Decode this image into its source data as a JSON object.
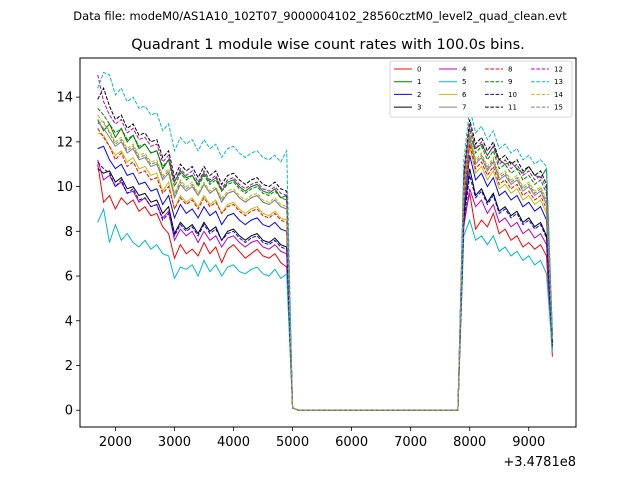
{
  "header_text": "Data file: modeM0/AS1A10_102T07_9000004102_28560cztM0_level2_quad_clean.evt",
  "chart_data": {
    "type": "line",
    "title": "Quadrant 1 module wise count rates with 100.0s bins.",
    "xlabel": "",
    "ylabel": "",
    "x_offset_label": "+3.4781e8",
    "xlim": [
      1400,
      9800
    ],
    "ylim": [
      -0.75,
      15.75
    ],
    "xticks": [
      2000,
      3000,
      4000,
      5000,
      6000,
      7000,
      8000,
      9000
    ],
    "yticks": [
      0,
      2,
      4,
      6,
      8,
      10,
      12,
      14
    ],
    "legend_position": "upper right",
    "gaps": [
      [
        5000,
        7900
      ]
    ],
    "segment1_x": [
      1700,
      1800,
      1900,
      2000,
      2100,
      2200,
      2300,
      2400,
      2500,
      2600,
      2700,
      2800,
      2900,
      3000,
      3100,
      3200,
      3300,
      3400,
      3500,
      3600,
      3700,
      3800,
      3900,
      4000,
      4100,
      4200,
      4300,
      4400,
      4500,
      4600,
      4700,
      4800,
      4900,
      5000
    ],
    "segment2_x": [
      7900,
      8000,
      8100,
      8200,
      8300,
      8400,
      8500,
      8600,
      8700,
      8800,
      8900,
      9000,
      9100,
      9200,
      9300,
      9400
    ],
    "series": [
      {
        "name": "0",
        "color": "#ff0000",
        "dash": "solid",
        "s1": [
          11.0,
          9.3,
          9.6,
          9.0,
          9.5,
          9.2,
          9.4,
          8.9,
          9.1,
          8.7,
          8.8,
          8.2,
          7.9,
          6.8,
          7.4,
          7.0,
          7.2,
          6.9,
          7.5,
          7.0,
          7.3,
          6.6,
          7.2,
          7.4,
          7.1,
          6.8,
          7.0,
          7.2,
          6.9,
          6.8,
          7.0,
          6.6,
          6.4,
          0.1
        ],
        "s2": [
          8.5,
          9.7,
          8.1,
          8.5,
          8.2,
          8.8,
          7.9,
          8.1,
          7.6,
          7.8,
          7.3,
          7.5,
          7.2,
          7.4,
          6.9,
          2.4
        ]
      },
      {
        "name": "1",
        "color": "#008000",
        "dash": "solid",
        "s1": [
          13.0,
          12.5,
          12.8,
          12.2,
          12.6,
          12.0,
          12.3,
          11.7,
          11.9,
          11.5,
          11.6,
          10.8,
          11.2,
          10.2,
          10.7,
          10.4,
          10.5,
          10.1,
          10.6,
          10.2,
          10.4,
          9.8,
          10.2,
          10.3,
          10.0,
          9.8,
          10.0,
          10.1,
          9.8,
          9.7,
          9.9,
          9.5,
          9.6,
          0.1
        ],
        "s2": [
          10.0,
          12.2,
          11.7,
          11.9,
          11.4,
          11.8,
          11.2,
          11.0,
          11.1,
          10.8,
          10.6,
          10.9,
          10.5,
          10.4,
          10.8,
          3.2
        ]
      },
      {
        "name": "2",
        "color": "#0000ff",
        "dash": "solid",
        "s1": [
          11.7,
          11.8,
          11.2,
          10.8,
          11.0,
          10.5,
          10.6,
          10.1,
          10.2,
          9.8,
          9.9,
          9.2,
          9.6,
          8.6,
          9.2,
          8.8,
          9.0,
          8.6,
          9.1,
          8.7,
          8.9,
          8.3,
          8.7,
          8.8,
          8.5,
          8.3,
          8.5,
          8.6,
          8.3,
          8.2,
          8.4,
          8.1,
          8.0,
          0.1
        ],
        "s2": [
          9.0,
          11.4,
          10.3,
          10.6,
          10.0,
          10.4,
          9.6,
          9.8,
          9.4,
          9.6,
          9.1,
          9.3,
          8.9,
          9.1,
          8.5,
          3.0
        ]
      },
      {
        "name": "3",
        "color": "#000000",
        "dash": "solid",
        "s1": [
          10.8,
          10.6,
          10.7,
          10.2,
          10.4,
          9.9,
          10.0,
          9.6,
          9.7,
          9.3,
          9.4,
          8.8,
          9.1,
          7.9,
          8.4,
          8.1,
          8.3,
          7.9,
          8.4,
          8.0,
          8.2,
          7.6,
          8.0,
          8.1,
          7.8,
          7.6,
          7.8,
          7.9,
          7.6,
          7.5,
          7.7,
          7.4,
          7.3,
          0.1
        ],
        "s2": [
          8.7,
          10.8,
          9.6,
          9.9,
          9.3,
          9.7,
          8.9,
          9.1,
          8.7,
          8.9,
          8.4,
          8.6,
          8.2,
          8.4,
          7.8,
          2.8
        ]
      },
      {
        "name": "4",
        "color": "#bf00bf",
        "dash": "solid",
        "s1": [
          11.2,
          10.3,
          10.5,
          10.0,
          10.2,
          9.7,
          9.8,
          9.3,
          9.5,
          9.1,
          9.2,
          8.6,
          8.9,
          7.6,
          8.1,
          7.8,
          8.0,
          7.5,
          8.0,
          7.6,
          7.8,
          7.3,
          7.7,
          7.8,
          7.5,
          7.3,
          7.5,
          7.6,
          7.3,
          7.2,
          7.4,
          7.1,
          7.0,
          0.1
        ],
        "s2": [
          8.2,
          9.9,
          9.1,
          9.4,
          8.8,
          9.2,
          8.4,
          8.6,
          8.2,
          8.4,
          7.9,
          8.1,
          7.7,
          7.9,
          7.4,
          2.7
        ]
      },
      {
        "name": "5",
        "color": "#00bfbf",
        "dash": "solid",
        "s1": [
          8.4,
          9.0,
          7.5,
          8.3,
          7.6,
          7.9,
          7.5,
          7.3,
          7.6,
          7.2,
          7.4,
          7.0,
          6.9,
          5.9,
          6.4,
          6.3,
          6.5,
          6.0,
          6.7,
          6.2,
          6.5,
          6.0,
          6.4,
          6.5,
          6.2,
          6.1,
          6.3,
          6.4,
          6.1,
          6.0,
          6.3,
          5.9,
          6.1,
          0.1
        ],
        "s2": [
          7.8,
          8.5,
          7.6,
          7.8,
          7.4,
          7.8,
          7.1,
          7.3,
          6.9,
          7.1,
          6.7,
          6.9,
          6.5,
          6.7,
          6.1,
          2.6
        ]
      },
      {
        "name": "6",
        "color": "#bfbf00",
        "dash": "solid",
        "s1": [
          12.4,
          12.3,
          11.8,
          11.4,
          11.6,
          11.1,
          11.3,
          10.8,
          10.9,
          10.5,
          10.6,
          9.8,
          10.2,
          9.0,
          9.6,
          9.3,
          9.5,
          9.1,
          9.6,
          9.2,
          9.4,
          8.8,
          9.2,
          9.3,
          9.0,
          8.8,
          9.0,
          9.1,
          8.8,
          8.7,
          8.9,
          8.6,
          8.5,
          0.1
        ],
        "s2": [
          9.3,
          11.8,
          10.6,
          10.9,
          10.3,
          10.7,
          9.9,
          10.1,
          9.7,
          9.9,
          9.4,
          9.6,
          9.2,
          9.4,
          8.8,
          3.1
        ]
      },
      {
        "name": "7",
        "color": "#808080",
        "dash": "solid",
        "s1": [
          12.9,
          12.6,
          12.2,
          11.8,
          12.0,
          11.5,
          11.7,
          11.2,
          11.3,
          10.9,
          11.0,
          10.3,
          10.6,
          9.5,
          10.1,
          9.8,
          10.0,
          9.6,
          10.1,
          9.7,
          9.9,
          9.3,
          9.7,
          9.8,
          9.5,
          9.3,
          9.5,
          9.6,
          9.3,
          9.2,
          9.4,
          9.1,
          9.0,
          0.1
        ],
        "s2": [
          9.6,
          12.1,
          11.0,
          11.3,
          10.7,
          11.1,
          10.3,
          10.5,
          10.1,
          10.3,
          9.8,
          10.0,
          9.6,
          9.8,
          9.2,
          3.2
        ]
      },
      {
        "name": "8",
        "color": "#ff0000",
        "dash": "dashed",
        "s1": [
          12.6,
          12.2,
          11.8,
          11.2,
          11.5,
          10.9,
          11.1,
          10.6,
          10.7,
          10.3,
          10.4,
          9.7,
          10.0,
          9.0,
          9.5,
          9.2,
          9.4,
          9.0,
          9.5,
          9.1,
          9.3,
          8.8,
          9.1,
          9.2,
          8.9,
          8.7,
          8.9,
          9.0,
          8.7,
          8.6,
          8.8,
          8.5,
          8.4,
          0.1
        ],
        "s2": [
          9.4,
          11.9,
          10.8,
          11.1,
          10.5,
          10.9,
          10.1,
          10.3,
          9.9,
          10.1,
          9.6,
          9.8,
          9.4,
          9.6,
          9.0,
          3.1
        ]
      },
      {
        "name": "9",
        "color": "#008000",
        "dash": "dashed",
        "s1": [
          13.5,
          13.2,
          12.8,
          12.4,
          12.6,
          12.1,
          12.3,
          11.8,
          11.9,
          11.5,
          11.6,
          10.9,
          11.2,
          10.0,
          10.6,
          10.3,
          10.5,
          10.0,
          10.5,
          10.1,
          10.3,
          9.8,
          10.1,
          10.2,
          9.9,
          9.7,
          9.9,
          10.0,
          9.7,
          9.6,
          9.8,
          9.5,
          9.4,
          0.1
        ],
        "s2": [
          10.3,
          12.6,
          11.5,
          11.8,
          11.2,
          11.6,
          10.8,
          11.0,
          10.6,
          10.8,
          10.3,
          10.5,
          10.1,
          10.3,
          9.7,
          3.3
        ]
      },
      {
        "name": "10",
        "color": "#0000ff",
        "dash": "dashed",
        "s1": [
          11.1,
          10.8,
          10.6,
          10.0,
          10.3,
          9.7,
          9.9,
          9.4,
          9.5,
          9.1,
          9.2,
          8.5,
          8.8,
          7.8,
          8.3,
          8.0,
          8.2,
          7.8,
          8.3,
          7.9,
          8.1,
          7.6,
          7.9,
          8.0,
          7.7,
          7.5,
          7.7,
          7.8,
          7.5,
          7.4,
          7.6,
          7.3,
          7.2,
          0.1
        ],
        "s2": [
          8.4,
          10.5,
          9.5,
          9.8,
          9.2,
          9.6,
          8.8,
          9.0,
          8.6,
          8.8,
          8.3,
          8.5,
          8.1,
          8.3,
          7.7,
          2.9
        ]
      },
      {
        "name": "11",
        "color": "#000000",
        "dash": "dashed",
        "s1": [
          13.9,
          14.4,
          13.6,
          13.0,
          13.2,
          12.6,
          12.8,
          12.3,
          12.4,
          12.0,
          12.1,
          11.3,
          11.6,
          10.4,
          11.0,
          10.7,
          10.9,
          10.4,
          10.9,
          10.5,
          10.7,
          10.1,
          10.5,
          10.6,
          10.3,
          10.1,
          10.3,
          10.4,
          10.1,
          10.0,
          10.2,
          9.9,
          9.8,
          0.1
        ],
        "s2": [
          10.6,
          13.0,
          11.9,
          12.2,
          11.6,
          12.0,
          11.2,
          11.4,
          11.0,
          11.2,
          10.7,
          10.9,
          10.5,
          10.7,
          10.1,
          3.4
        ]
      },
      {
        "name": "12",
        "color": "#bf00bf",
        "dash": "dashed",
        "s1": [
          15.0,
          13.8,
          13.2,
          12.8,
          13.0,
          12.4,
          12.6,
          12.1,
          12.2,
          11.8,
          11.9,
          11.1,
          11.4,
          10.2,
          10.8,
          10.5,
          10.7,
          10.2,
          10.7,
          10.3,
          10.5,
          9.9,
          10.3,
          10.4,
          10.1,
          9.9,
          10.1,
          10.2,
          9.9,
          9.8,
          10.0,
          9.7,
          9.6,
          0.1
        ],
        "s2": [
          10.4,
          12.8,
          11.7,
          12.0,
          11.4,
          11.8,
          11.0,
          11.2,
          10.8,
          11.0,
          10.5,
          10.7,
          10.3,
          10.5,
          9.9,
          3.3
        ]
      },
      {
        "name": "13",
        "color": "#00bfbf",
        "dash": "dashed",
        "s1": [
          14.4,
          15.1,
          15.0,
          14.1,
          14.4,
          13.8,
          14.0,
          13.5,
          13.6,
          13.2,
          13.3,
          12.5,
          12.8,
          11.6,
          12.2,
          11.9,
          12.1,
          11.6,
          12.1,
          11.7,
          11.9,
          11.3,
          11.7,
          11.8,
          11.5,
          11.3,
          11.5,
          11.6,
          11.3,
          11.2,
          11.4,
          11.1,
          11.6,
          0.1
        ],
        "s2": [
          11.2,
          13.5,
          12.4,
          12.7,
          12.1,
          12.5,
          11.7,
          11.9,
          11.5,
          11.7,
          11.2,
          11.4,
          11.0,
          11.2,
          10.9,
          3.6
        ]
      },
      {
        "name": "14",
        "color": "#bfbf00",
        "dash": "dashed",
        "s1": [
          13.2,
          12.8,
          12.5,
          12.0,
          12.2,
          11.7,
          11.9,
          11.4,
          11.5,
          11.1,
          11.2,
          10.5,
          10.8,
          9.7,
          10.3,
          10.0,
          10.2,
          9.7,
          10.2,
          9.8,
          10.0,
          9.5,
          9.8,
          9.9,
          9.6,
          9.4,
          9.6,
          9.7,
          9.4,
          9.3,
          9.5,
          9.2,
          9.1,
          0.1
        ],
        "s2": [
          9.9,
          12.4,
          11.2,
          11.5,
          10.9,
          11.3,
          10.5,
          10.7,
          10.3,
          10.5,
          10.0,
          10.2,
          9.8,
          10.0,
          9.4,
          3.2
        ]
      },
      {
        "name": "15",
        "color": "#808080",
        "dash": "dashed",
        "s1": [
          12.8,
          12.9,
          12.4,
          11.9,
          12.1,
          11.6,
          11.8,
          11.3,
          11.4,
          11.0,
          11.1,
          10.4,
          10.7,
          9.6,
          10.2,
          9.9,
          10.1,
          9.6,
          10.1,
          9.7,
          9.9,
          9.4,
          9.7,
          9.8,
          9.5,
          9.3,
          9.5,
          9.6,
          9.3,
          9.2,
          9.4,
          9.1,
          9.0,
          0.1
        ],
        "s2": [
          9.8,
          12.3,
          11.1,
          11.4,
          10.8,
          11.2,
          10.4,
          10.6,
          10.2,
          10.4,
          9.9,
          10.1,
          9.7,
          9.9,
          9.3,
          3.2
        ]
      }
    ]
  }
}
